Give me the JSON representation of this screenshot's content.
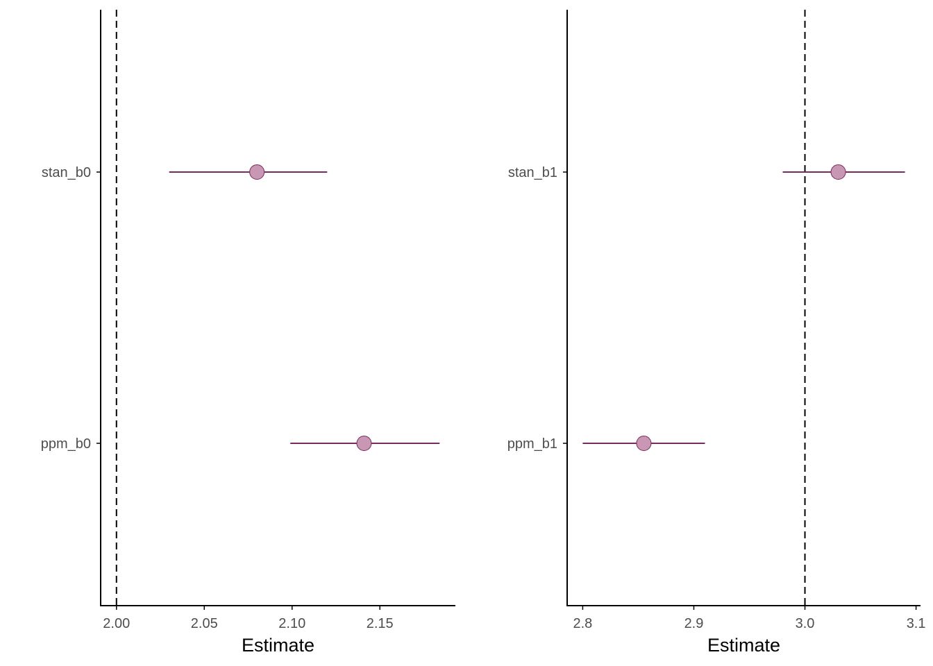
{
  "chart_data": [
    {
      "type": "forest",
      "xlabel": "Estimate",
      "categories": [
        "stan_b0",
        "ppm_b0"
      ],
      "estimates": [
        2.08,
        2.141
      ],
      "lower": [
        2.03,
        2.099
      ],
      "upper": [
        2.12,
        2.184
      ],
      "reference_line": 2.0,
      "xlim": [
        1.991,
        2.193
      ],
      "x_ticks": [
        2.0,
        2.05,
        2.1,
        2.15
      ],
      "x_tick_labels": [
        "2.00",
        "2.05",
        "2.10",
        "2.15"
      ]
    },
    {
      "type": "forest",
      "xlabel": "Estimate",
      "categories": [
        "stan_b1",
        "ppm_b1"
      ],
      "estimates": [
        3.03,
        2.855
      ],
      "lower": [
        2.98,
        2.8
      ],
      "upper": [
        3.09,
        2.91
      ],
      "reference_line": 3.0,
      "xlim": [
        2.786,
        3.104
      ],
      "x_ticks": [
        2.8,
        2.9,
        3.0,
        3.1
      ],
      "x_tick_labels": [
        "2.8",
        "2.9",
        "3.0",
        "3.1"
      ]
    }
  ],
  "colors": {
    "interval_line": "#7a2a5a",
    "point_fill": "#c797b3",
    "point_stroke": "#7a2a5a",
    "axis": "#000000",
    "reference_line": "#000000"
  }
}
